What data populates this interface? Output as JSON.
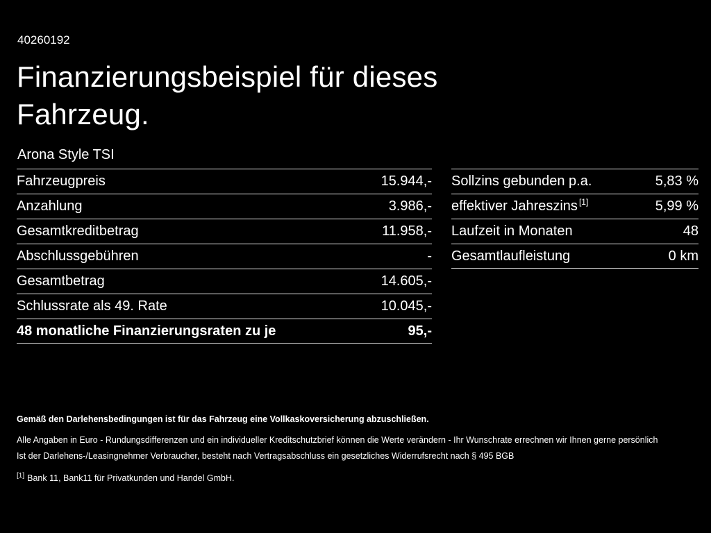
{
  "page": {
    "vehicle_id": "40260192",
    "title_line1": "Finanzierungsbeispiel für dieses",
    "title_line2": "Fahrzeug.",
    "model": "Arona Style TSI"
  },
  "finance_table": {
    "rows": [
      {
        "label": "Fahrzeugpreis",
        "value": "15.944,-"
      },
      {
        "label": "Anzahlung",
        "value": "3.986,-"
      },
      {
        "label": "Gesamtkreditbetrag",
        "value": "11.958,-"
      },
      {
        "label": "Abschlussgebühren",
        "value": "-"
      },
      {
        "label": "Gesamtbetrag",
        "value": "14.605,-"
      },
      {
        "label": "Schlussrate als 49. Rate",
        "value": "10.045,-"
      },
      {
        "label": "48 monatliche Finanzierungsraten zu je",
        "value": "95,-"
      }
    ]
  },
  "conditions_table": {
    "rows": [
      {
        "label": "Sollzins gebunden p.a.",
        "value": "5,83 %"
      },
      {
        "label": "effektiver Jahreszins",
        "sup": "[1]",
        "value": "5,99 %"
      },
      {
        "label": "Laufzeit in Monaten",
        "value": "48"
      },
      {
        "label": "Gesamtlaufleistung",
        "value": "0 km"
      }
    ]
  },
  "legal": {
    "line1": "Gemäß den Darlehensbedingungen ist für das Fahrzeug eine Vollkaskoversicherung abzuschließen.",
    "line2": "Alle Angaben in Euro - Rundungsdifferenzen und ein individueller Kreditschutzbrief können die Werte verändern - Ihr Wunschrate errechnen wir Ihnen gerne persönlich",
    "line3": "Ist der Darlehens-/Leasingnehmer Verbraucher, besteht nach Vertragsabschluss ein gesetzliches Widerrufsrecht nach § 495 BGB",
    "footnote_marker": "[1]",
    "footnote_text": "Bank 11, Bank11 für Privatkunden und Handel GmbH."
  }
}
